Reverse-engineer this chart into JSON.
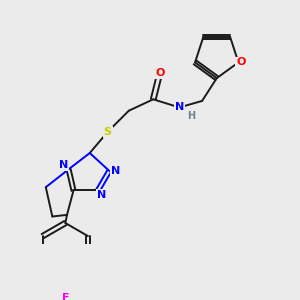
{
  "bg_color": "#ebebeb",
  "bond_color": "#1a1a1a",
  "atom_colors": {
    "N": "#0000ff",
    "O": "#ff0000",
    "S": "#cccc00",
    "F": "#ff00ff",
    "H": "#708090",
    "C": "#1a1a1a"
  },
  "lw": 1.4,
  "fs": 7.5
}
